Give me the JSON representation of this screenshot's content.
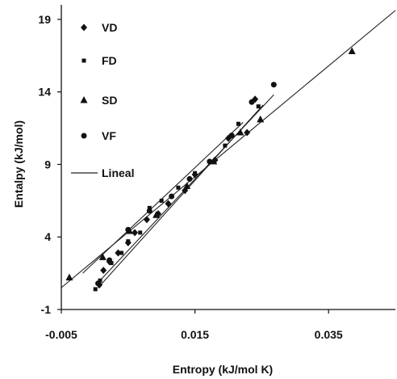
{
  "chart_data": {
    "type": "scatter",
    "xlabel": "Entropy (kJ/mol K)",
    "ylabel": "Entalpy (kJ/mol)",
    "xlim": [
      -0.005,
      0.045
    ],
    "ylim": [
      -1,
      20
    ],
    "xticks": [
      "-0.005",
      "0.015",
      "0.035"
    ],
    "xtick_values": [
      -0.005,
      0.015,
      0.035
    ],
    "yticks": [
      "-1",
      "4",
      "9",
      "14",
      "19"
    ],
    "ytick_values": [
      -1,
      4,
      9,
      14,
      19
    ],
    "grid": false,
    "legend_position": "top-left",
    "legend": [
      {
        "label": "VD",
        "marker": "diamond"
      },
      {
        "label": "FD",
        "marker": "square"
      },
      {
        "label": "SD",
        "marker": "triangle"
      },
      {
        "label": "VF",
        "marker": "circle"
      },
      {
        "label": "Lineal",
        "marker": "line"
      }
    ],
    "series": [
      {
        "name": "VD",
        "marker": "diamond",
        "points": [
          [
            0.0007,
            0.7
          ],
          [
            0.0013,
            1.7
          ],
          [
            0.0022,
            2.3
          ],
          [
            0.0035,
            2.9
          ],
          [
            0.005,
            3.6
          ],
          [
            0.006,
            4.3
          ],
          [
            0.0078,
            5.2
          ],
          [
            0.0095,
            5.6
          ],
          [
            0.011,
            6.3
          ],
          [
            0.0135,
            7.2
          ],
          [
            0.015,
            8.3
          ],
          [
            0.018,
            9.3
          ],
          [
            0.02,
            10.8
          ],
          [
            0.0228,
            11.2
          ],
          [
            0.024,
            13.5
          ]
        ]
      },
      {
        "name": "FD",
        "marker": "square",
        "points": [
          [
            0.0001,
            0.4
          ],
          [
            0.0008,
            1.0
          ],
          [
            0.0025,
            2.2
          ],
          [
            0.004,
            2.9
          ],
          [
            0.005,
            3.7
          ],
          [
            0.0068,
            4.3
          ],
          [
            0.0082,
            6.0
          ],
          [
            0.01,
            6.5
          ],
          [
            0.0125,
            7.4
          ],
          [
            0.015,
            8.4
          ],
          [
            0.0195,
            10.3
          ],
          [
            0.0215,
            11.8
          ],
          [
            0.0245,
            13.0
          ]
        ]
      },
      {
        "name": "SD",
        "marker": "triangle",
        "points": [
          [
            -0.0038,
            1.2
          ],
          [
            0.0012,
            2.6
          ],
          [
            0.0052,
            4.4
          ],
          [
            0.0092,
            5.5
          ],
          [
            0.0138,
            7.5
          ],
          [
            0.0178,
            9.2
          ],
          [
            0.0218,
            11.2
          ],
          [
            0.0248,
            12.1
          ],
          [
            0.0385,
            16.8
          ]
        ]
      },
      {
        "name": "VF",
        "marker": "circle",
        "points": [
          [
            0.0005,
            0.8
          ],
          [
            0.0022,
            2.4
          ],
          [
            0.005,
            4.5
          ],
          [
            0.0082,
            5.8
          ],
          [
            0.0115,
            6.8
          ],
          [
            0.0142,
            8.0
          ],
          [
            0.0172,
            9.2
          ],
          [
            0.0205,
            11.0
          ],
          [
            0.0235,
            13.3
          ],
          [
            0.0268,
            14.5
          ]
        ]
      }
    ],
    "lines": [
      {
        "series": "SD",
        "x": [
          -0.0058,
          0.0468
        ],
        "y": [
          0.2,
          20.3
        ]
      },
      {
        "series": "VD",
        "x": [
          0.0005,
          0.0252
        ],
        "y": [
          0.5,
          13.1
        ]
      },
      {
        "series": "FD",
        "x": [
          0.0008,
          0.0268
        ],
        "y": [
          1.0,
          13.8
        ]
      },
      {
        "series": "VF",
        "x": [
          -0.0018,
          0.0222
        ],
        "y": [
          1.5,
          11.9
        ]
      }
    ]
  }
}
